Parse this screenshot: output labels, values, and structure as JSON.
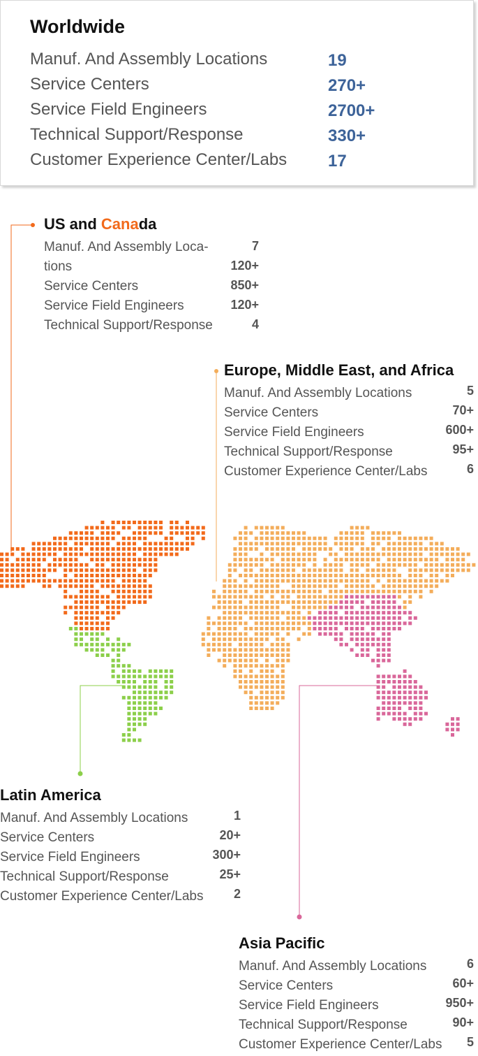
{
  "colors": {
    "us_canada": "#f26a1b",
    "emea": "#f3ad5b",
    "latin_america": "#8ccf4a",
    "asia_pacific": "#d9679a",
    "worldwide_value": "#3d6399"
  },
  "worldwide": {
    "title": "Worldwide",
    "rows": [
      {
        "label": "Manuf. And Assembly Locations",
        "value": "19"
      },
      {
        "label": "Service Centers",
        "value": "270+"
      },
      {
        "label": "Service Field Engineers",
        "value": "2700+"
      },
      {
        "label": "Technical Support/Response",
        "value": "330+"
      },
      {
        "label": "Customer Experience Center/Labs",
        "value": "17"
      }
    ]
  },
  "us_canada": {
    "title_part1": "US and ",
    "title_accent": "Cana",
    "title_part2": "da",
    "labels": [
      "Manuf. And Assembly Loca-",
      "tions",
      "Service Centers",
      "Service Field Engineers",
      "Technical Support/Response"
    ],
    "values": [
      "7",
      "120+",
      "850+",
      "120+",
      "4"
    ]
  },
  "emea": {
    "title": "Europe, Middle East, and Africa",
    "rows": [
      {
        "label": "Manuf. And Assembly Locations",
        "value": "5"
      },
      {
        "label": "Service Centers",
        "value": "70+"
      },
      {
        "label": "Service Field Engineers",
        "value": "600+"
      },
      {
        "label": "Technical Support/Response",
        "value": "95+"
      },
      {
        "label": "Customer Experience Center/Labs",
        "value": "6"
      }
    ]
  },
  "latin_america": {
    "title": "Latin America",
    "rows": [
      {
        "label": "Manuf. And Assembly Locations",
        "value": "1"
      },
      {
        "label": "Service Centers",
        "value": "20+"
      },
      {
        "label": "Service Field Engineers",
        "value": "300+"
      },
      {
        "label": "Technical Support/Response",
        "value": "25+"
      },
      {
        "label": "Customer Experience Center/Labs",
        "value": "2"
      }
    ]
  },
  "asia_pacific": {
    "title": "Asia Pacific",
    "rows": [
      {
        "label": "Manuf. And Assembly Locations",
        "value": "6"
      },
      {
        "label": "Service Centers",
        "value": "60+"
      },
      {
        "label": "Service Field Engineers",
        "value": "950+"
      },
      {
        "label": "Technical Support/Response",
        "value": "90+"
      },
      {
        "label": "Customer Experience Center/Labs",
        "value": "5"
      }
    ]
  }
}
